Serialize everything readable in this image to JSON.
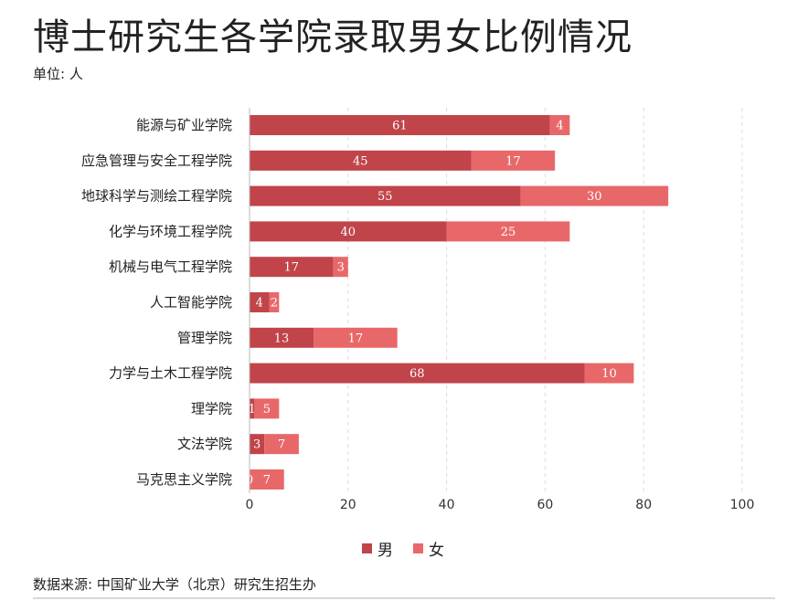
{
  "title": "博士研究生各学院录取男女比例情况",
  "unit_note": "单位: 人",
  "source_note": "数据来源: 中国矿业大学（北京）研究生招生办",
  "colors": {
    "male": "#c0444a",
    "female": "#e8686a",
    "grid": "#dddddd",
    "axis": "#bbbbbb"
  },
  "chart_data": {
    "type": "bar",
    "orientation": "horizontal",
    "stacked": true,
    "categories": [
      "能源与矿业学院",
      "应急管理与安全工程学院",
      "地球科学与测绘工程学院",
      "化学与环境工程学院",
      "机械与电气工程学院",
      "人工智能学院",
      "管理学院",
      "力学与土木工程学院",
      "理学院",
      "文法学院",
      "马克思主义学院"
    ],
    "series": [
      {
        "name": "男",
        "color": "#c0444a",
        "values": [
          61,
          45,
          55,
          40,
          17,
          4,
          13,
          68,
          1,
          3,
          0
        ]
      },
      {
        "name": "女",
        "color": "#e8686a",
        "values": [
          4,
          17,
          30,
          25,
          3,
          2,
          17,
          10,
          5,
          7,
          7
        ]
      }
    ],
    "xlim": [
      0,
      100
    ],
    "xticks": [
      "0",
      "20",
      "40",
      "60",
      "80",
      "100"
    ],
    "grid": true,
    "legend_position": "bottom"
  }
}
